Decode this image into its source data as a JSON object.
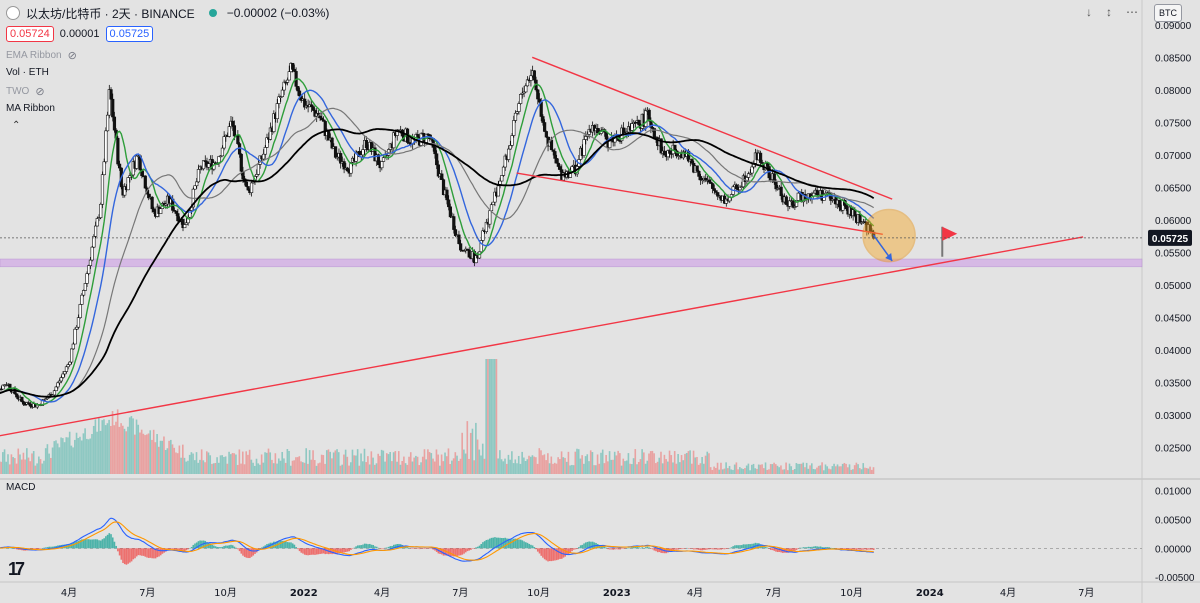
{
  "header": {
    "symbol": "以太坊/比特币 · 2天 · BINANCE",
    "change": "−0.00002 (−0.03%)",
    "sell_price": "0.05724",
    "spread": "0.00001",
    "buy_price": "0.05725",
    "currency": "BTC"
  },
  "indicators": [
    {
      "label": "EMA Ribbon",
      "hidden": true
    },
    {
      "label": "Vol · ETH",
      "hidden": false
    },
    {
      "label": "TWO",
      "hidden": true
    },
    {
      "label": "MA Ribbon",
      "hidden": false
    }
  ],
  "icons": {
    "hidden_indicator": "eye-off-icon",
    "collapse": "chevron-up-icon",
    "logo": "tradingview-logo-icon"
  },
  "logo_text": "17",
  "macd_label": "MACD",
  "colors": {
    "up": "#26a69a",
    "down": "#ef5350",
    "trend": "#f23645",
    "zone": "#d4b2e6",
    "price_label": "#131722"
  },
  "chart_data": {
    "type": "candlestick",
    "ylim": [
      0.0205,
      0.0915
    ],
    "y_ticks": [
      "0.09000",
      "0.08500",
      "0.08000",
      "0.07500",
      "0.07000",
      "0.06500",
      "0.06000",
      "0.05500",
      "0.05000",
      "0.04500",
      "0.04000",
      "0.03500",
      "0.03000",
      "0.02500"
    ],
    "last_price_label": "0.05725",
    "macd_ylim": [
      -0.0055,
      0.0115
    ],
    "macd_ticks": [
      "0.01000",
      "0.00500",
      "0.00000",
      "-0.00500"
    ],
    "x_ticks": [
      "4月",
      "7月",
      "10月",
      "2022",
      "4月",
      "7月",
      "10月",
      "2023",
      "4月",
      "7月",
      "10月",
      "2024",
      "4月",
      "7月"
    ],
    "close_path": [
      [
        2021.0,
        0.033
      ],
      [
        2021.05,
        0.035
      ],
      [
        2021.1,
        0.032
      ],
      [
        2021.15,
        0.0315
      ],
      [
        2021.2,
        0.0335
      ],
      [
        2021.25,
        0.038
      ],
      [
        2021.3,
        0.05
      ],
      [
        2021.35,
        0.062
      ],
      [
        2021.38,
        0.08
      ],
      [
        2021.42,
        0.064
      ],
      [
        2021.47,
        0.07
      ],
      [
        2021.52,
        0.061
      ],
      [
        2021.57,
        0.063
      ],
      [
        2021.62,
        0.059
      ],
      [
        2021.67,
        0.068
      ],
      [
        2021.72,
        0.069
      ],
      [
        2021.77,
        0.075
      ],
      [
        2021.82,
        0.064
      ],
      [
        2021.87,
        0.07
      ],
      [
        2021.92,
        0.078
      ],
      [
        2021.96,
        0.083
      ],
      [
        2022.0,
        0.078
      ],
      [
        2022.05,
        0.076
      ],
      [
        2022.1,
        0.07
      ],
      [
        2022.15,
        0.068
      ],
      [
        2022.2,
        0.072
      ],
      [
        2022.25,
        0.068
      ],
      [
        2022.3,
        0.074
      ],
      [
        2022.35,
        0.072
      ],
      [
        2022.4,
        0.073
      ],
      [
        2022.45,
        0.064
      ],
      [
        2022.5,
        0.056
      ],
      [
        2022.55,
        0.054
      ],
      [
        2022.6,
        0.062
      ],
      [
        2022.65,
        0.07
      ],
      [
        2022.7,
        0.08
      ],
      [
        2022.73,
        0.083
      ],
      [
        2022.78,
        0.072
      ],
      [
        2022.82,
        0.067
      ],
      [
        2022.87,
        0.068
      ],
      [
        2022.92,
        0.075
      ],
      [
        2022.97,
        0.072
      ],
      [
        2023.0,
        0.073
      ],
      [
        2023.05,
        0.074
      ],
      [
        2023.1,
        0.076
      ],
      [
        2023.15,
        0.07
      ],
      [
        2023.2,
        0.071
      ],
      [
        2023.25,
        0.068
      ],
      [
        2023.3,
        0.065
      ],
      [
        2023.35,
        0.063
      ],
      [
        2023.4,
        0.066
      ],
      [
        2023.45,
        0.07
      ],
      [
        2023.5,
        0.066
      ],
      [
        2023.55,
        0.062
      ],
      [
        2023.6,
        0.064
      ],
      [
        2023.65,
        0.064
      ],
      [
        2023.7,
        0.063
      ],
      [
        2023.75,
        0.061
      ],
      [
        2023.78,
        0.06
      ],
      [
        2023.8,
        0.059
      ],
      [
        2023.82,
        0.0575
      ]
    ],
    "volume_peak_date": 2022.6,
    "trendlines": [
      {
        "name": "upper",
        "from": [
          2022.73,
          0.085
        ],
        "to": [
          2023.88,
          0.0632
        ]
      },
      {
        "name": "lower",
        "from": [
          2022.68,
          0.0672
        ],
        "to": [
          2023.85,
          0.0578
        ]
      },
      {
        "name": "support",
        "from": [
          2020.99,
          0.0265
        ],
        "to": [
          2024.49,
          0.0574
        ]
      }
    ],
    "support_zone": [
      0.0528,
      0.054
    ],
    "projection": {
      "from": [
        2023.82,
        0.0577
      ],
      "to": [
        2023.88,
        0.0537
      ]
    },
    "target_circle": {
      "center": [
        2023.87,
        0.0576
      ],
      "radius": 0.004
    },
    "flag": {
      "x": 2024.04,
      "y": 0.0565
    }
  }
}
